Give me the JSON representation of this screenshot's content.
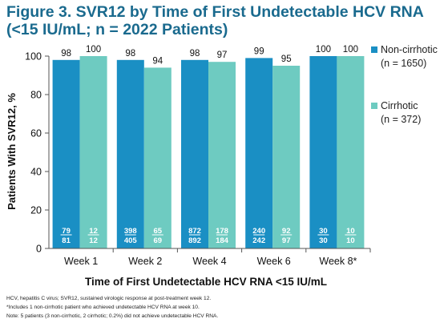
{
  "title": {
    "line1": "Figure 3. SVR12 by Time of First Undetectable HCV RNA",
    "line2": "(<15 IU/mL; n = 2022 Patients)"
  },
  "footnotes": [
    "HCV, hepatitis C virus; SVR12, sustained virologic response at post-treatment week 12.",
    "*Includes 1 non-cirrhotic patient who achieved undetectable HCV RNA at week 10.",
    "Note: 5 patients (3 non-cirrhotic, 2 cirrhotic; 0.2%) did not achieve undetectable HCV RNA."
  ],
  "chart_data": {
    "type": "bar",
    "xlabel": "Time of First Undetectable HCV RNA <15 IU/mL",
    "ylabel": "Patients With SVR12, %",
    "ylim": [
      0,
      100
    ],
    "yticks": [
      "0",
      "20",
      "40",
      "60",
      "80",
      "100"
    ],
    "grid": false,
    "legend_position": "right",
    "categories": [
      "Week 1",
      "Week 2",
      "Week 4",
      "Week 6",
      "Week 8*"
    ],
    "series": [
      {
        "name": "Non-cirrhotic",
        "legend_sub": "(n = 1650)",
        "color": "#1a8fc4",
        "values": [
          98,
          98,
          98,
          99,
          100
        ],
        "value_labels": [
          "98",
          "98",
          "98",
          "99",
          "100"
        ],
        "numerators": [
          "79",
          "398",
          "872",
          "240",
          "30"
        ],
        "denominators": [
          "81",
          "405",
          "892",
          "242",
          "30"
        ]
      },
      {
        "name": "Cirrhotic",
        "legend_sub": "(n = 372)",
        "color": "#6ecbc1",
        "values": [
          100,
          94,
          97,
          95,
          100
        ],
        "value_labels": [
          "100",
          "94",
          "97",
          "95",
          "100"
        ],
        "numerators": [
          "12",
          "65",
          "178",
          "92",
          "10"
        ],
        "denominators": [
          "12",
          "69",
          "184",
          "97",
          "10"
        ]
      }
    ]
  }
}
